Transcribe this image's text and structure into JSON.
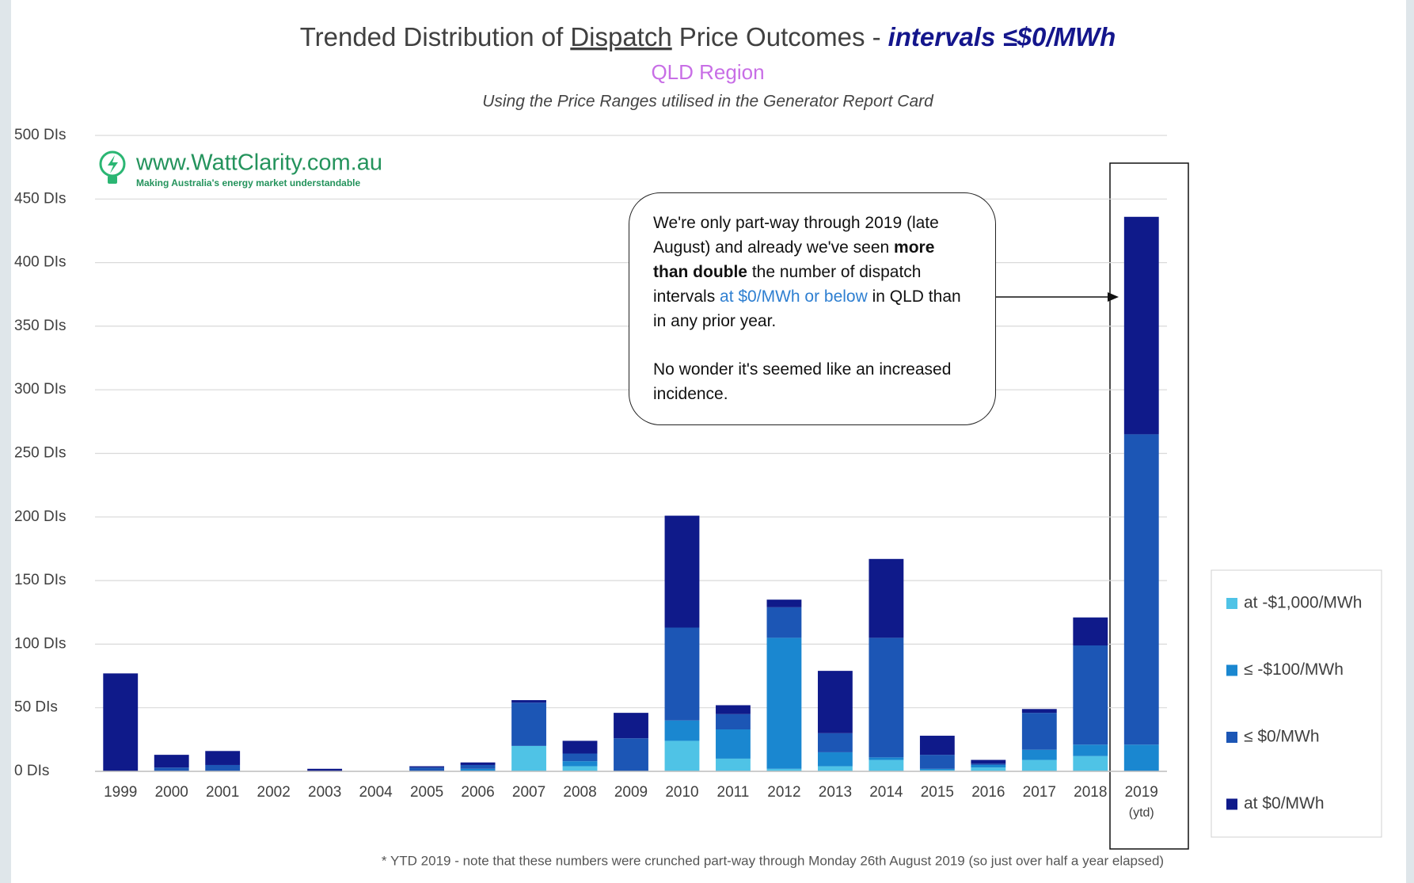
{
  "chart_data": {
    "type": "stacked-bar",
    "title": {
      "prefix": "Trended Distribution of",
      "underlined": "Dispatch",
      "middle": "Price Outcomes -",
      "highlight": "intervals ≤$0/MWh"
    },
    "subtitle": "QLD Region",
    "caption": "Using the Price Ranges utilised in the Generator Report Card",
    "categories": [
      "1999",
      "2000",
      "2001",
      "2002",
      "2003",
      "2004",
      "2005",
      "2006",
      "2007",
      "2008",
      "2009",
      "2010",
      "2011",
      "2012",
      "2013",
      "2014",
      "2015",
      "2016",
      "2017",
      "2018",
      "2019"
    ],
    "last_category_note": "(ytd)",
    "series": [
      {
        "name": "at -$1,000/MWh",
        "color": "#4fc3e6",
        "values": [
          0,
          0,
          0,
          0,
          0,
          0,
          0,
          0,
          20,
          4,
          0,
          24,
          10,
          2,
          4,
          9,
          1,
          3,
          9,
          12,
          0
        ]
      },
      {
        "name": "≤ -$100/MWh",
        "color": "#1a87d0",
        "values": [
          0,
          0,
          0,
          0,
          0,
          0,
          0,
          2,
          0,
          4,
          0,
          16,
          23,
          103,
          11,
          2,
          1,
          2,
          8,
          9,
          21
        ]
      },
      {
        "name": "≤ $0/MWh",
        "color": "#1c56b5",
        "values": [
          0,
          3,
          5,
          0,
          0,
          0,
          3,
          3,
          34,
          6,
          26,
          73,
          12,
          24,
          15,
          94,
          11,
          1,
          29,
          78,
          244
        ]
      },
      {
        "name": "at $0/MWh",
        "color": "#0f1a8a",
        "values": [
          77,
          10,
          11,
          0,
          2,
          0,
          1,
          2,
          2,
          10,
          20,
          88,
          7,
          6,
          49,
          62,
          15,
          3,
          3,
          22,
          171
        ]
      }
    ],
    "ylim": [
      0,
      500
    ],
    "yticks": [
      {
        "value": 0,
        "label": "0 DIs"
      },
      {
        "value": 50,
        "label": "50 DIs"
      },
      {
        "value": 100,
        "label": "100 DIs"
      },
      {
        "value": 150,
        "label": "150 DIs"
      },
      {
        "value": 200,
        "label": "200 DIs"
      },
      {
        "value": 250,
        "label": "250 DIs"
      },
      {
        "value": 300,
        "label": "300 DIs"
      },
      {
        "value": 350,
        "label": "350 DIs"
      },
      {
        "value": 400,
        "label": "400 DIs"
      },
      {
        "value": 450,
        "label": "450 DIs"
      },
      {
        "value": 500,
        "label": "500 DIs"
      }
    ],
    "grid": true,
    "legend": "right",
    "logo": {
      "site": "www.WattClarity.com.au",
      "tagline": "Making Australia's energy market understandable"
    },
    "callout": {
      "paragraphs": [
        [
          {
            "text": "We're only part-way through 2019 (late August) and already we've seen "
          },
          {
            "text": "more than double",
            "style": "bold"
          },
          {
            "text": " the number of dispatch intervals "
          },
          {
            "text": "at $0/MWh or below",
            "style": "blue"
          },
          {
            "text": " in QLD than in any prior year."
          }
        ],
        [
          {
            "text": "No wonder it's seemed like an increased incidence."
          }
        ]
      ]
    },
    "footnote": "*  YTD 2019 - note that these numbers were crunched part-way through Monday 26th August 2019 (so just over half a year elapsed)"
  }
}
